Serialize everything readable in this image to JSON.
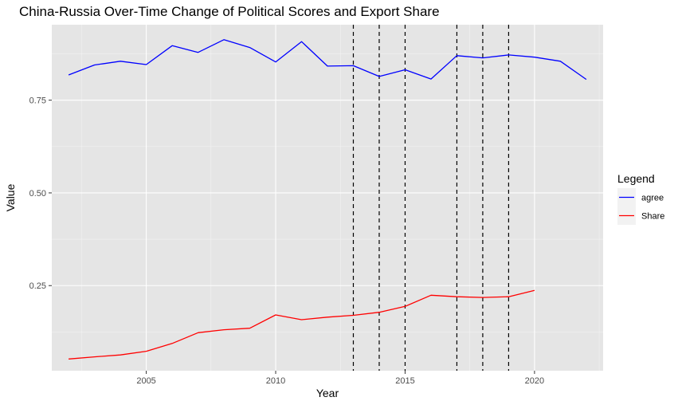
{
  "chart_data": {
    "type": "line",
    "title": "China-Russia Over-Time Change of Political Scores and Export Share",
    "xlabel": "Year",
    "ylabel": "Value",
    "xlim": [
      2001.35,
      2022.65
    ],
    "ylim": [
      0.0205,
      0.9535
    ],
    "x_ticks": [
      2005,
      2010,
      2015,
      2020
    ],
    "x_tick_labels": [
      "2005",
      "2010",
      "2015",
      "2020"
    ],
    "y_ticks": [
      0.25,
      0.5,
      0.75
    ],
    "y_tick_labels": [
      "0.25",
      "0.50",
      "0.75"
    ],
    "grid": true,
    "background": "#e5e5e5",
    "legend": {
      "title": "Legend",
      "placement": "right",
      "entries": [
        "agree",
        "Share"
      ]
    },
    "vlines": {
      "x": [
        2013,
        2014,
        2015,
        2017,
        2018,
        2019
      ],
      "style": "dashed",
      "color": "#000000"
    },
    "series": [
      {
        "name": "agree",
        "color": "#0000ff",
        "x": [
          2002,
          2003,
          2004,
          2005,
          2006,
          2007,
          2008,
          2009,
          2010,
          2011,
          2012,
          2013,
          2014,
          2015,
          2016,
          2017,
          2018,
          2019,
          2020,
          2021,
          2022
        ],
        "values": [
          0.818,
          0.845,
          0.855,
          0.846,
          0.897,
          0.879,
          0.913,
          0.892,
          0.853,
          0.908,
          0.842,
          0.843,
          0.814,
          0.832,
          0.807,
          0.87,
          0.864,
          0.872,
          0.866,
          0.855,
          0.806
        ]
      },
      {
        "name": "Share",
        "color": "#ff0000",
        "x": [
          2002,
          2003,
          2004,
          2005,
          2006,
          2007,
          2008,
          2009,
          2010,
          2011,
          2012,
          2013,
          2014,
          2015,
          2016,
          2017,
          2018,
          2019,
          2020
        ],
        "values": [
          0.052,
          0.058,
          0.063,
          0.073,
          0.094,
          0.123,
          0.131,
          0.135,
          0.171,
          0.158,
          0.165,
          0.17,
          0.178,
          0.194,
          0.224,
          0.22,
          0.218,
          0.22,
          0.237
        ]
      }
    ]
  }
}
